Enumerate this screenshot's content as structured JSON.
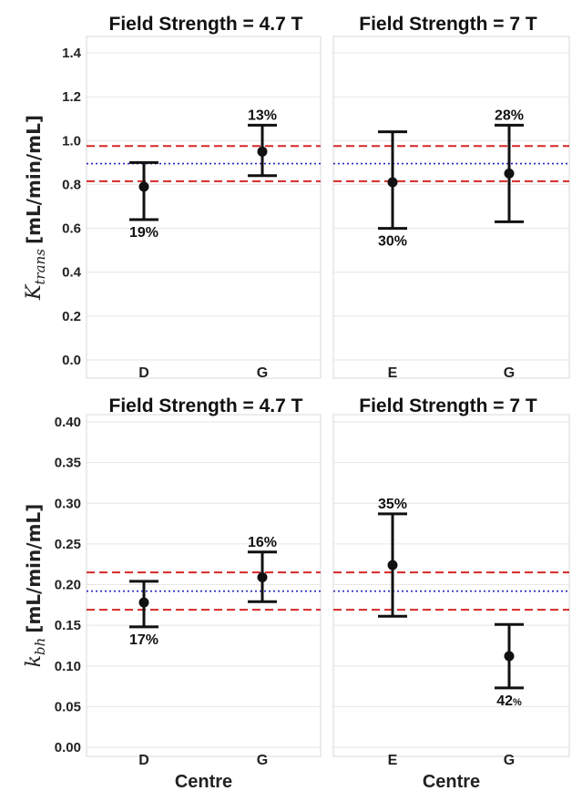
{
  "chart_data": [
    {
      "type": "errorbar",
      "title": "Field Strength = 4.7 T",
      "ylabel": {
        "main": "K",
        "sub": "trans",
        "unit": "[mL/min/mL]"
      },
      "xlabel": "",
      "ylim": [
        0.0,
        1.45
      ],
      "yticks": [
        "0.0",
        "0.2",
        "0.4",
        "0.6",
        "0.8",
        "1.0",
        "1.2",
        "1.4"
      ],
      "categories": [
        "D",
        "G"
      ],
      "points": [
        {
          "category": "D",
          "value": 0.79,
          "lower": 0.64,
          "upper": 0.9,
          "cv_label": "19%",
          "label_pos": "below"
        },
        {
          "category": "G",
          "value": 0.95,
          "lower": 0.84,
          "upper": 1.07,
          "cv_label": "13%",
          "label_pos": "above"
        }
      ],
      "reference_lines": [
        {
          "value": 0.975,
          "style": "dashed",
          "color": "#d62728"
        },
        {
          "value": 0.895,
          "style": "dotted",
          "color": "#2222bb"
        },
        {
          "value": 0.815,
          "style": "dashed",
          "color": "#d62728"
        }
      ],
      "grid": true
    },
    {
      "type": "errorbar",
      "title": "Field Strength = 7 T",
      "xlabel": "",
      "ylim": [
        0.0,
        1.45
      ],
      "categories": [
        "E",
        "G"
      ],
      "points": [
        {
          "category": "E",
          "value": 0.81,
          "lower": 0.6,
          "upper": 1.04,
          "cv_label": "30%",
          "label_pos": "below"
        },
        {
          "category": "G",
          "value": 0.85,
          "lower": 0.63,
          "upper": 1.07,
          "cv_label": "28%",
          "label_pos": "above"
        }
      ],
      "reference_lines": [
        {
          "value": 0.975,
          "style": "dashed",
          "color": "#d62728"
        },
        {
          "value": 0.895,
          "style": "dotted",
          "color": "#2222bb"
        },
        {
          "value": 0.815,
          "style": "dashed",
          "color": "#d62728"
        }
      ],
      "grid": true
    },
    {
      "type": "errorbar",
      "title": "Field Strength = 4.7 T",
      "ylabel": {
        "main": "k",
        "sub": "bh",
        "unit": "[mL/min/mL]"
      },
      "xlabel": "Centre",
      "ylim": [
        0.0,
        0.4
      ],
      "yticks": [
        "0.00",
        "0.05",
        "0.10",
        "0.15",
        "0.20",
        "0.25",
        "0.30",
        "0.35",
        "0.40"
      ],
      "categories": [
        "D",
        "G"
      ],
      "points": [
        {
          "category": "D",
          "value": 0.178,
          "lower": 0.148,
          "upper": 0.204,
          "cv_label": "17%",
          "label_pos": "below"
        },
        {
          "category": "G",
          "value": 0.209,
          "lower": 0.179,
          "upper": 0.24,
          "cv_label": "16%",
          "label_pos": "above"
        }
      ],
      "reference_lines": [
        {
          "value": 0.215,
          "style": "dashed",
          "color": "#d62728"
        },
        {
          "value": 0.192,
          "style": "dotted",
          "color": "#2222bb"
        },
        {
          "value": 0.169,
          "style": "dashed",
          "color": "#d62728"
        }
      ],
      "grid": true
    },
    {
      "type": "errorbar",
      "title": "Field Strength = 7 T",
      "xlabel": "Centre",
      "ylim": [
        0.0,
        0.4
      ],
      "categories": [
        "E",
        "G"
      ],
      "points": [
        {
          "category": "E",
          "value": 0.224,
          "lower": 0.161,
          "upper": 0.287,
          "cv_label": "35%",
          "label_pos": "above"
        },
        {
          "category": "G",
          "value": 0.112,
          "lower": 0.073,
          "upper": 0.151,
          "cv_label": "42",
          "cv_suffix": "%",
          "label_pos": "below"
        }
      ],
      "reference_lines": [
        {
          "value": 0.215,
          "style": "dashed",
          "color": "#d62728"
        },
        {
          "value": 0.192,
          "style": "dotted",
          "color": "#2222bb"
        },
        {
          "value": 0.169,
          "style": "dashed",
          "color": "#d62728"
        }
      ],
      "grid": true
    }
  ],
  "colors": {
    "marker": "#111111",
    "mean_line": "#2222bb",
    "limit_line": "#d62728",
    "grid": "#e6e6e6"
  }
}
